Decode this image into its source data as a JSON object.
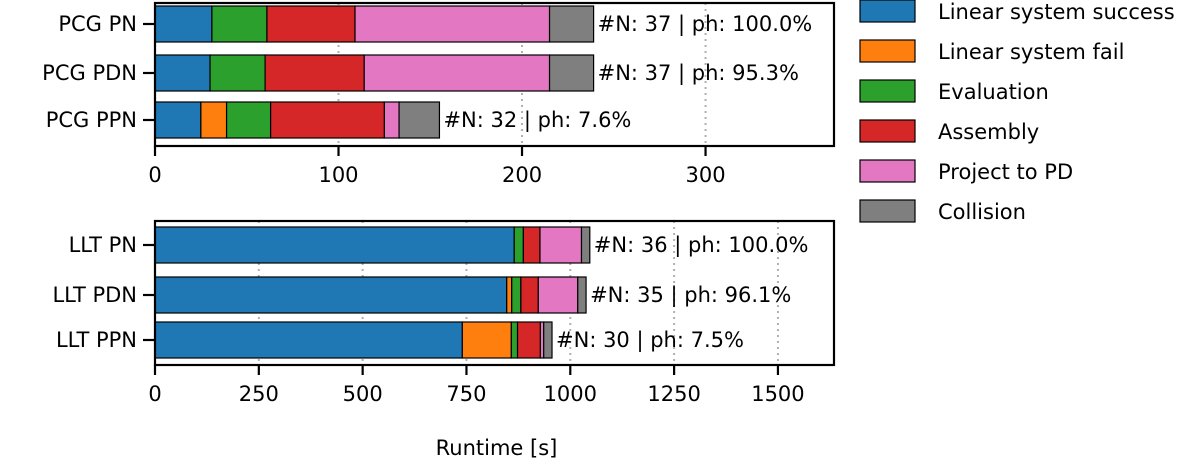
{
  "legend": [
    {
      "key": "lin_succ",
      "label": "Linear system success",
      "color": "#1f77b4"
    },
    {
      "key": "lin_fail",
      "label": "Linear system fail",
      "color": "#ff7f0e"
    },
    {
      "key": "eval",
      "label": "Evaluation",
      "color": "#2ca02c"
    },
    {
      "key": "assembly",
      "label": "Assembly",
      "color": "#d62728"
    },
    {
      "key": "project",
      "label": "Project to PD",
      "color": "#e377c2"
    },
    {
      "key": "collision",
      "label": "Collision",
      "color": "#7f7f7f"
    }
  ],
  "chart_data": [
    {
      "type": "bar",
      "orientation": "horizontal",
      "stacked": true,
      "categories": [
        "PCG PN",
        "PCG PDN",
        "PCG PPN"
      ],
      "series": [
        {
          "name": "Linear system success",
          "values": [
            31,
            30,
            25
          ]
        },
        {
          "name": "Linear system fail",
          "values": [
            0,
            0,
            14
          ]
        },
        {
          "name": "Evaluation",
          "values": [
            30,
            30,
            24
          ]
        },
        {
          "name": "Assembly",
          "values": [
            48,
            54,
            62
          ]
        },
        {
          "name": "Project to PD",
          "values": [
            106,
            101,
            8
          ]
        },
        {
          "name": "Collision",
          "values": [
            24,
            24,
            22
          ]
        }
      ],
      "annotations": [
        "#N: 37 | ph: 100.0%",
        "#N: 37 | ph: 95.3%",
        "#N: 32 | ph: 7.6%"
      ],
      "xticks": [
        0,
        100,
        200,
        300
      ],
      "xlim": [
        0,
        370
      ],
      "grid": "vertical dotted",
      "xlabel": "",
      "ylabel": ""
    },
    {
      "type": "bar",
      "orientation": "horizontal",
      "stacked": true,
      "categories": [
        "LLT PN",
        "LLT PDN",
        "LLT PPN"
      ],
      "series": [
        {
          "name": "Linear system success",
          "values": [
            865,
            847,
            740
          ]
        },
        {
          "name": "Linear system fail",
          "values": [
            0,
            12,
            118
          ]
        },
        {
          "name": "Evaluation",
          "values": [
            22,
            22,
            15
          ]
        },
        {
          "name": "Assembly",
          "values": [
            40,
            42,
            55
          ]
        },
        {
          "name": "Project to PD",
          "values": [
            100,
            95,
            8
          ]
        },
        {
          "name": "Collision",
          "values": [
            20,
            20,
            20
          ]
        }
      ],
      "annotations": [
        "#N: 36 | ph: 100.0%",
        "#N: 35 | ph: 96.1%",
        "#N: 30 | ph: 7.5%"
      ],
      "xticks": [
        0,
        250,
        500,
        750,
        1000,
        1250,
        1500
      ],
      "xlim": [
        0,
        1635
      ],
      "grid": "vertical dotted",
      "xlabel": "Runtime [s]",
      "ylabel": ""
    }
  ]
}
